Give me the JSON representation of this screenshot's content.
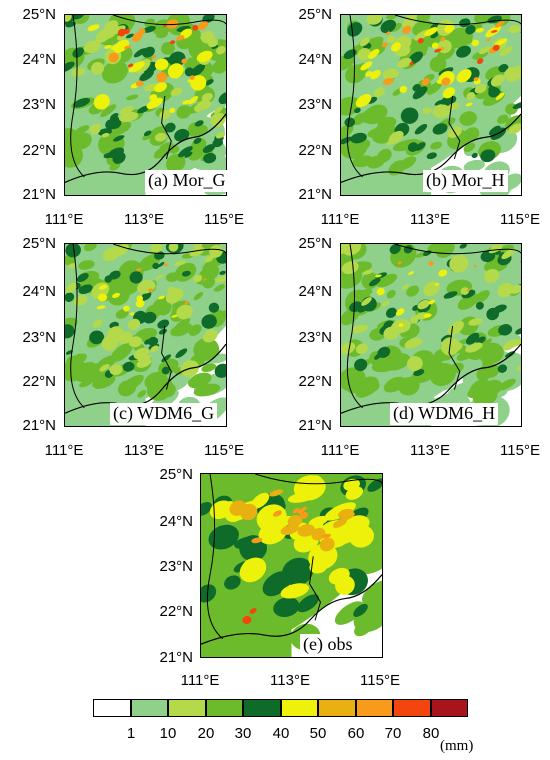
{
  "panels": [
    {
      "id": "a",
      "label": "(a) Mor_G"
    },
    {
      "id": "b",
      "label": "(b) Mor_H"
    },
    {
      "id": "c",
      "label": "(c) WDM6_G"
    },
    {
      "id": "d",
      "label": "(d) WDM6_H"
    },
    {
      "id": "e",
      "label": "(e) obs"
    }
  ],
  "axes": {
    "lat_ticks": [
      "25°N",
      "24°N",
      "23°N",
      "22°N",
      "21°N"
    ],
    "lon_ticks": [
      "111°E",
      "113°E",
      "115°E"
    ]
  },
  "colorbar": {
    "labels": [
      "1",
      "10",
      "20",
      "30",
      "40",
      "50",
      "60",
      "70",
      "80"
    ],
    "unit": "(mm)",
    "colors": [
      "#ffffff",
      "#8fd18a",
      "#b4d94a",
      "#6cbb2c",
      "#0f6b2a",
      "#eef20a",
      "#e8b010",
      "#f89a1a",
      "#f4450f",
      "#a8141b"
    ]
  }
}
